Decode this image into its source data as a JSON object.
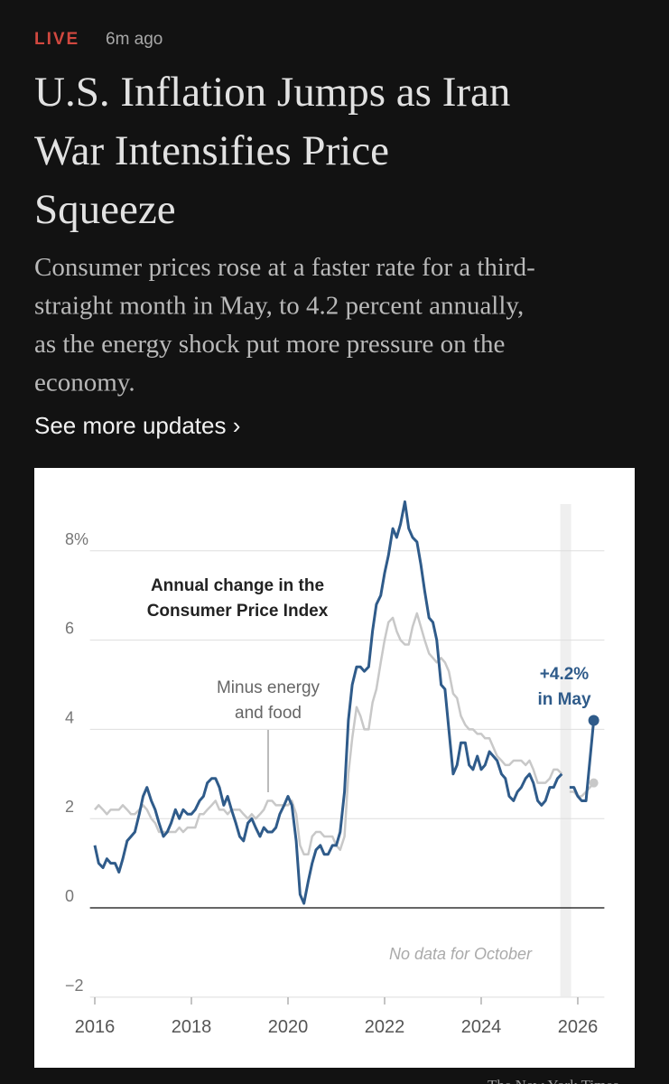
{
  "header": {
    "live": "LIVE",
    "time": "6m ago",
    "headline": [
      "U.S. Inflation Jumps as Iran",
      "War Intensifies Price",
      "Squeeze"
    ],
    "summary": [
      "Consumer prices rose at a faster rate for a third-",
      "straight month in May, to 4.2 percent annually,",
      "as the energy shock put more pressure on the",
      "economy."
    ],
    "link": "See more updates ›"
  },
  "chart_data": {
    "type": "line",
    "title": [
      "Annual change in the",
      "Consumer Price Index"
    ],
    "note": "No data for October",
    "credit": "The New York Times",
    "x": [
      2016.0,
      2016.08,
      2016.17,
      2016.25,
      2016.33,
      2016.42,
      2016.5,
      2016.58,
      2016.67,
      2016.75,
      2016.83,
      2016.92,
      2017.0,
      2017.08,
      2017.17,
      2017.25,
      2017.33,
      2017.42,
      2017.5,
      2017.58,
      2017.67,
      2017.75,
      2017.83,
      2017.92,
      2018.0,
      2018.08,
      2018.17,
      2018.25,
      2018.33,
      2018.42,
      2018.5,
      2018.58,
      2018.67,
      2018.75,
      2018.83,
      2018.92,
      2019.0,
      2019.08,
      2019.17,
      2019.25,
      2019.33,
      2019.42,
      2019.5,
      2019.58,
      2019.67,
      2019.75,
      2019.83,
      2019.92,
      2020.0,
      2020.08,
      2020.17,
      2020.25,
      2020.33,
      2020.42,
      2020.5,
      2020.58,
      2020.67,
      2020.75,
      2020.83,
      2020.92,
      2021.0,
      2021.08,
      2021.17,
      2021.25,
      2021.33,
      2021.42,
      2021.5,
      2021.58,
      2021.67,
      2021.75,
      2021.83,
      2021.92,
      2022.0,
      2022.08,
      2022.17,
      2022.25,
      2022.33,
      2022.42,
      2022.5,
      2022.58,
      2022.67,
      2022.75,
      2022.83,
      2022.92,
      2023.0,
      2023.08,
      2023.17,
      2023.25,
      2023.33,
      2023.42,
      2023.5,
      2023.58,
      2023.67,
      2023.75,
      2023.83,
      2023.92,
      2024.0,
      2024.08,
      2024.17,
      2024.25,
      2024.33,
      2024.42,
      2024.5,
      2024.58,
      2024.67,
      2024.75,
      2024.83,
      2024.92,
      2025.0,
      2025.08,
      2025.17,
      2025.25,
      2025.33,
      2025.42,
      2025.5,
      2025.58,
      2025.67,
      2025.75,
      2025.83,
      2025.92,
      2026.0,
      2026.08,
      2026.17,
      2026.25,
      2026.33
    ],
    "series": [
      {
        "label": [
          "Minus energy",
          "and food"
        ],
        "color": "#c8c8c8",
        "values": [
          2.2,
          2.3,
          2.2,
          2.1,
          2.2,
          2.2,
          2.2,
          2.3,
          2.2,
          2.1,
          2.1,
          2.2,
          2.3,
          2.2,
          2.0,
          1.9,
          1.7,
          1.7,
          1.7,
          1.7,
          1.7,
          1.8,
          1.7,
          1.8,
          1.8,
          1.8,
          2.1,
          2.1,
          2.2,
          2.3,
          2.4,
          2.2,
          2.2,
          2.1,
          2.2,
          2.2,
          2.2,
          2.1,
          2.0,
          2.1,
          2.0,
          2.1,
          2.2,
          2.4,
          2.4,
          2.3,
          2.3,
          2.3,
          2.3,
          2.4,
          2.1,
          1.4,
          1.2,
          1.2,
          1.6,
          1.7,
          1.7,
          1.6,
          1.6,
          1.6,
          1.4,
          1.3,
          1.6,
          3.0,
          3.8,
          4.5,
          4.3,
          4.0,
          4.0,
          4.6,
          4.9,
          5.5,
          6.0,
          6.4,
          6.5,
          6.2,
          6.0,
          5.9,
          5.9,
          6.3,
          6.6,
          6.3,
          6.0,
          5.7,
          5.6,
          5.5,
          5.6,
          5.5,
          5.3,
          4.8,
          4.7,
          4.3,
          4.1,
          4.0,
          4.0,
          3.9,
          3.9,
          3.8,
          3.8,
          3.6,
          3.4,
          3.3,
          3.2,
          3.2,
          3.3,
          3.3,
          3.3,
          3.2,
          3.3,
          3.1,
          2.8,
          2.8,
          2.8,
          2.9,
          3.1,
          3.1,
          3.0,
          null,
          2.6,
          2.6,
          2.5,
          2.5,
          2.6,
          2.7,
          2.8
        ]
      },
      {
        "label": [
          "+4.2%",
          "in May"
        ],
        "color": "#2f5b8a",
        "values": [
          1.4,
          1.0,
          0.9,
          1.1,
          1.0,
          1.0,
          0.8,
          1.1,
          1.5,
          1.6,
          1.7,
          2.1,
          2.5,
          2.7,
          2.4,
          2.2,
          1.9,
          1.6,
          1.7,
          1.9,
          2.2,
          2.0,
          2.2,
          2.1,
          2.1,
          2.2,
          2.4,
          2.5,
          2.8,
          2.9,
          2.9,
          2.7,
          2.3,
          2.5,
          2.2,
          1.9,
          1.6,
          1.5,
          1.9,
          2.0,
          1.8,
          1.6,
          1.8,
          1.7,
          1.7,
          1.8,
          2.1,
          2.3,
          2.5,
          2.3,
          1.5,
          0.3,
          0.1,
          0.6,
          1.0,
          1.3,
          1.4,
          1.2,
          1.2,
          1.4,
          1.4,
          1.7,
          2.6,
          4.2,
          5.0,
          5.4,
          5.4,
          5.3,
          5.4,
          6.2,
          6.8,
          7.0,
          7.5,
          7.9,
          8.5,
          8.3,
          8.6,
          9.1,
          8.5,
          8.3,
          8.2,
          7.7,
          7.1,
          6.5,
          6.4,
          6.0,
          5.0,
          4.9,
          4.0,
          3.0,
          3.2,
          3.7,
          3.7,
          3.2,
          3.1,
          3.4,
          3.1,
          3.2,
          3.5,
          3.4,
          3.3,
          3.0,
          2.9,
          2.5,
          2.4,
          2.6,
          2.7,
          2.9,
          3.0,
          2.8,
          2.4,
          2.3,
          2.4,
          2.7,
          2.7,
          2.9,
          3.0,
          null,
          2.7,
          2.7,
          2.5,
          2.4,
          2.4,
          3.3,
          4.2
        ]
      }
    ],
    "xlim": [
      2015.9,
      2026.55
    ],
    "xticks": [
      2016,
      2018,
      2020,
      2022,
      2024,
      2026
    ],
    "ylim": [
      -2.2,
      9.2
    ],
    "yticks": [
      {
        "value": -2,
        "label": "−2"
      },
      0,
      2,
      4,
      6,
      {
        "value": 8,
        "label": "8%"
      }
    ],
    "grid": true
  }
}
